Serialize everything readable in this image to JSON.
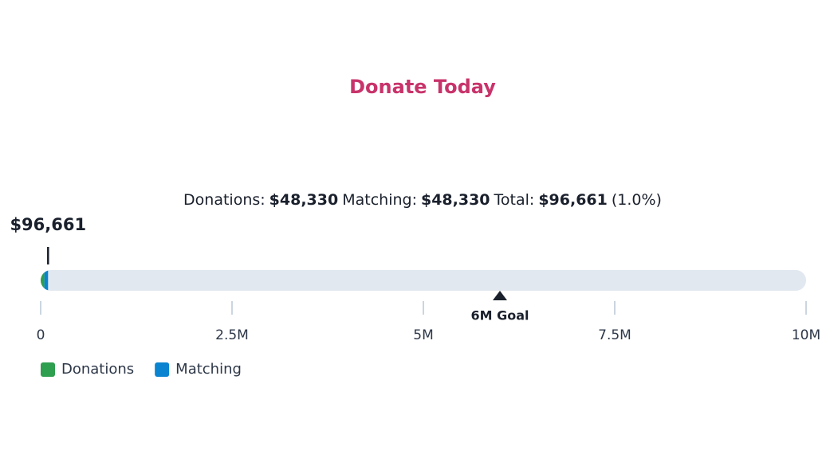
{
  "chart_data": {
    "type": "bar",
    "orientation": "horizontal",
    "stacked": true,
    "title": "Donate Today",
    "series": [
      {
        "name": "Donations",
        "summary_label": "Donations:",
        "color": "#2e9e4f",
        "values": [
          48330
        ],
        "value_labels": [
          "$48,330"
        ]
      },
      {
        "name": "Matching",
        "summary_label": "Matching:",
        "color": "#0a84d0",
        "values": [
          48330
        ],
        "value_labels": [
          "$48,330"
        ]
      }
    ],
    "total": {
      "label": "Total:",
      "value": 96661,
      "value_label": "$96,661",
      "percent": 1.0,
      "percent_label": "(1.0%)"
    },
    "goal": {
      "value": 6000000,
      "label": "6M Goal"
    },
    "xlim": [
      0,
      10000000
    ],
    "xticks": [
      0,
      {
        "value": 2500000,
        "label": "2.5M"
      },
      {
        "value": 5000000,
        "label": "5M"
      },
      {
        "value": 7500000,
        "label": "7.5M"
      },
      {
        "value": 10000000,
        "label": "10M"
      }
    ]
  }
}
